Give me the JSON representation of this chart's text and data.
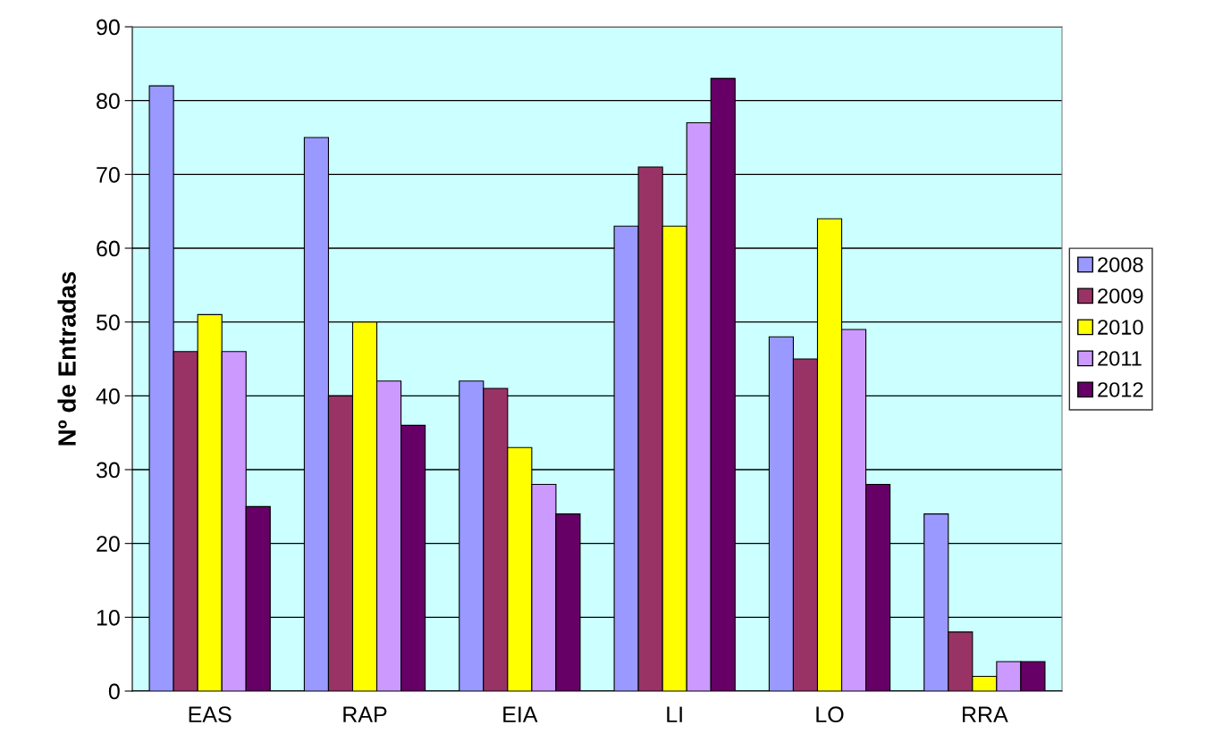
{
  "chart_data": {
    "type": "bar",
    "ylabel": "Nº de Entradas",
    "categories": [
      "EAS",
      "RAP",
      "EIA",
      "LI",
      "LO",
      "RRA"
    ],
    "series": [
      {
        "name": "2008",
        "color": "#9999ff",
        "values": [
          82,
          75,
          42,
          63,
          48,
          24
        ]
      },
      {
        "name": "2009",
        "color": "#993366",
        "values": [
          46,
          40,
          41,
          71,
          45,
          8
        ]
      },
      {
        "name": "2010",
        "color": "#ffff00",
        "values": [
          51,
          50,
          33,
          63,
          64,
          2
        ]
      },
      {
        "name": "2011",
        "color": "#cc99ff",
        "values": [
          46,
          42,
          28,
          77,
          49,
          4
        ]
      },
      {
        "name": "2012",
        "color": "#660066",
        "values": [
          25,
          36,
          24,
          83,
          28,
          4
        ]
      }
    ],
    "ylim": [
      0,
      90
    ],
    "yticks": [
      0,
      10,
      20,
      30,
      40,
      50,
      60,
      70,
      80,
      90
    ],
    "grid": "y",
    "legend": "right"
  }
}
